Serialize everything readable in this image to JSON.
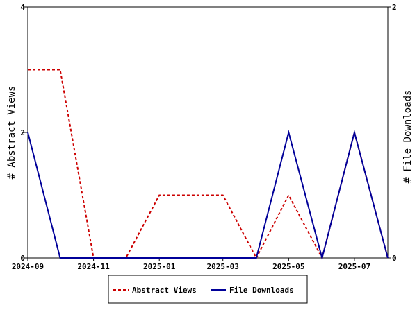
{
  "chart_data": {
    "type": "line",
    "x": [
      "2024-09-01",
      "2024-10-01",
      "2024-11-01",
      "2024-12-01",
      "2025-01-01",
      "2025-02-01",
      "2025-03-01",
      "2025-04-01",
      "2025-05-01",
      "2025-06-01",
      "2025-07-01",
      "2025-08-01"
    ],
    "x_tick_labels": [
      "2024-09",
      "2024-11",
      "2025-01",
      "2025-03",
      "2025-05",
      "2025-07"
    ],
    "x_tick_dates": [
      "2024-09-01",
      "2024-11-01",
      "2025-01-01",
      "2025-03-01",
      "2025-05-01",
      "2025-07-01"
    ],
    "xlim": [
      "2024-09-01",
      "2025-08-01"
    ],
    "ylabel_left": "# Abstract Views",
    "ylabel_right": "# File Downloads",
    "ylim_left": [
      0,
      4
    ],
    "ylim_right": [
      0,
      2
    ],
    "yticks_left": [
      0,
      2,
      4
    ],
    "yticks_right": [
      0,
      2
    ],
    "grid": false,
    "legend_position": "bottom",
    "series": [
      {
        "name": "Abstract Views",
        "axis": "left",
        "color": "#cc0000",
        "style": "dashed",
        "values": [
          3,
          3,
          0,
          0,
          1,
          1,
          1,
          0,
          1,
          0,
          2,
          0
        ]
      },
      {
        "name": "File Downloads",
        "axis": "right",
        "color": "#000099",
        "style": "solid",
        "values": [
          1,
          0,
          0,
          0,
          0,
          0,
          0,
          0,
          1,
          0,
          1,
          0
        ]
      }
    ]
  }
}
